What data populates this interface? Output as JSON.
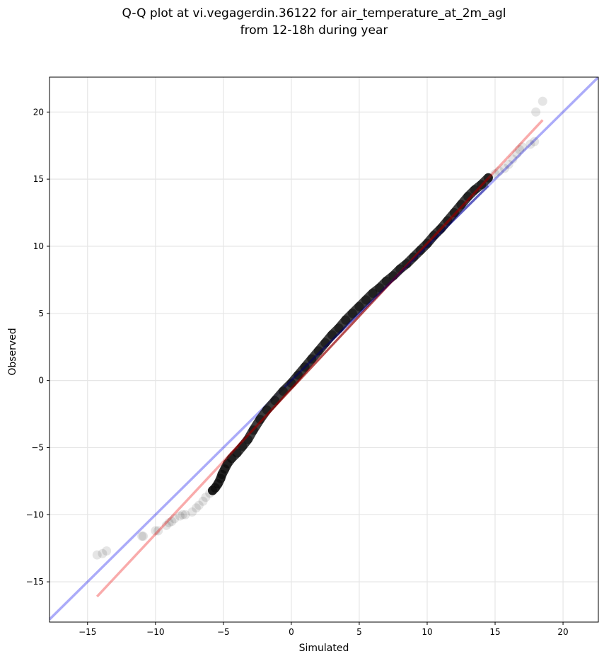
{
  "chart_data": {
    "type": "scatter",
    "title_line1": "Q-Q plot at vi.vegagerdin.36122 for air_temperature_at_2m_agl",
    "title_line2": "from 12-18h during year",
    "xlabel": "Simulated",
    "ylabel": "Observed",
    "xlim": [
      -17.8,
      22.6
    ],
    "ylim": [
      -18.0,
      22.6
    ],
    "xticks": [
      -15,
      -10,
      -5,
      0,
      5,
      10,
      15,
      20
    ],
    "yticks": [
      -15,
      -10,
      -5,
      0,
      5,
      10,
      15,
      20
    ],
    "xtick_labels": [
      "−15",
      "−10",
      "−5",
      "0",
      "5",
      "10",
      "15",
      "20"
    ],
    "ytick_labels": [
      "−15",
      "−10",
      "−5",
      "0",
      "5",
      "10",
      "15",
      "20"
    ],
    "grid": true,
    "series": [
      {
        "kind": "quantiles",
        "color": "#000000",
        "points": [
          [
            -14.3,
            -13.0
          ],
          [
            -13.9,
            -12.9
          ],
          [
            -13.6,
            -12.7
          ],
          [
            -11.0,
            -11.6
          ],
          [
            -10.9,
            -11.6
          ],
          [
            -10.0,
            -11.2
          ],
          [
            -9.8,
            -11.2
          ],
          [
            -9.2,
            -10.8
          ],
          [
            -9.0,
            -10.6
          ],
          [
            -8.8,
            -10.5
          ],
          [
            -8.6,
            -10.3
          ],
          [
            -8.2,
            -10.1
          ],
          [
            -8.0,
            -10.0
          ],
          [
            -7.8,
            -10.0
          ],
          [
            -7.3,
            -9.8
          ],
          [
            -7.0,
            -9.5
          ],
          [
            -6.8,
            -9.3
          ],
          [
            -6.5,
            -9.0
          ],
          [
            -6.3,
            -8.7
          ],
          [
            -6.0,
            -8.4
          ],
          [
            -5.8,
            -8.2
          ],
          [
            -5.6,
            -8.0
          ],
          [
            -5.4,
            -7.7
          ],
          [
            -5.2,
            -7.3
          ],
          [
            -5.1,
            -7.0
          ],
          [
            -4.9,
            -6.6
          ],
          [
            -4.7,
            -6.2
          ],
          [
            -4.4,
            -5.8
          ],
          [
            -4.0,
            -5.4
          ],
          [
            -3.6,
            -4.9
          ],
          [
            -3.2,
            -4.4
          ],
          [
            -2.8,
            -3.7
          ],
          [
            -2.3,
            -2.9
          ],
          [
            -1.8,
            -2.2
          ],
          [
            -1.2,
            -1.5
          ],
          [
            -0.6,
            -0.8
          ],
          [
            0.0,
            -0.2
          ],
          [
            0.5,
            0.4
          ],
          [
            1.0,
            1.0
          ],
          [
            1.5,
            1.6
          ],
          [
            2.0,
            2.2
          ],
          [
            2.5,
            2.8
          ],
          [
            3.0,
            3.4
          ],
          [
            3.5,
            3.9
          ],
          [
            4.0,
            4.5
          ],
          [
            4.5,
            5.0
          ],
          [
            5.0,
            5.5
          ],
          [
            5.5,
            6.0
          ],
          [
            6.0,
            6.5
          ],
          [
            6.5,
            6.9
          ],
          [
            7.0,
            7.4
          ],
          [
            7.5,
            7.8
          ],
          [
            8.0,
            8.3
          ],
          [
            8.5,
            8.7
          ],
          [
            9.0,
            9.2
          ],
          [
            9.5,
            9.7
          ],
          [
            10.0,
            10.2
          ],
          [
            10.5,
            10.8
          ],
          [
            11.0,
            11.3
          ],
          [
            11.5,
            11.9
          ],
          [
            12.0,
            12.5
          ],
          [
            12.5,
            13.1
          ],
          [
            13.0,
            13.7
          ],
          [
            13.5,
            14.2
          ],
          [
            14.0,
            14.6
          ],
          [
            14.5,
            15.1
          ],
          [
            15.0,
            15.4
          ],
          [
            15.3,
            15.6
          ],
          [
            15.7,
            15.8
          ],
          [
            16.0,
            16.1
          ],
          [
            16.3,
            16.5
          ],
          [
            16.6,
            16.9
          ],
          [
            16.8,
            17.2
          ],
          [
            17.0,
            17.4
          ],
          [
            17.6,
            17.6
          ],
          [
            17.9,
            17.8
          ],
          [
            18.0,
            20.0
          ],
          [
            18.5,
            20.8
          ]
        ]
      },
      {
        "kind": "identity-line",
        "color": "#0000ee",
        "from": [
          -17.8,
          -17.8
        ],
        "to": [
          22.6,
          22.6
        ]
      },
      {
        "kind": "fit-line",
        "color": "#ee0000",
        "from": [
          -14.3,
          -16.1
        ],
        "to": [
          18.5,
          19.4
        ]
      }
    ]
  }
}
